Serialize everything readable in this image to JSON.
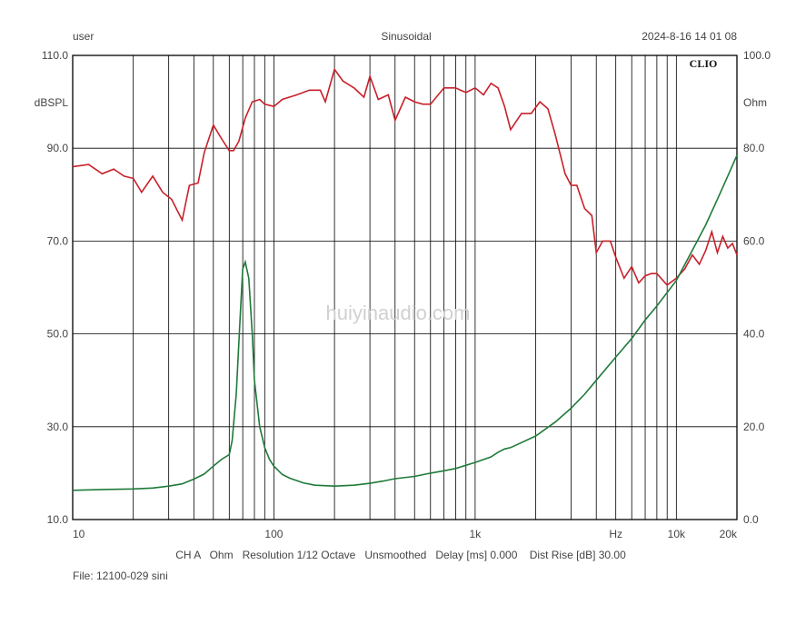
{
  "header": {
    "user": "user",
    "mode": "Sinusoidal",
    "datetime": "2024-8-16 14 01 08",
    "brand": "CLIO"
  },
  "watermark": "huiyinaudio.com",
  "footer": {
    "settings": "CH A   Ohm   Resolution 1/12 Octave   Unsmoothed   Delay [ms] 0.000    Dist Rise [dB] 30.00",
    "file": "File: 12100-029 sini"
  },
  "chart_data": {
    "type": "line",
    "x_scale": "log",
    "xlim": [
      10,
      20000
    ],
    "x_tick_labels": [
      {
        "value": 10,
        "label": "10"
      },
      {
        "value": 100,
        "label": "100"
      },
      {
        "value": 1000,
        "label": "1k"
      },
      {
        "value": 5000,
        "label": "Hz"
      },
      {
        "value": 10000,
        "label": "10k"
      },
      {
        "value": 20000,
        "label": "20k"
      }
    ],
    "left_axis": {
      "label": "dBSPL",
      "ylim": [
        10,
        110
      ],
      "ticks": [
        "10.0",
        "30.0",
        "50.0",
        "70.0",
        "90.0",
        "110.0"
      ]
    },
    "right_axis": {
      "label": "Ohm",
      "ylim": [
        0,
        100
      ],
      "ticks": [
        "0.0",
        "20.0",
        "40.0",
        "60.0",
        "80.0",
        "100.0"
      ]
    },
    "grid": true,
    "colors": {
      "spl": "#c8202a",
      "impedance": "#1f7a3a",
      "grid": "#000000"
    },
    "series": [
      {
        "key": "spl",
        "axis": "left",
        "x": [
          10,
          12,
          14,
          16,
          18,
          20,
          22,
          25,
          28,
          31,
          35,
          38,
          42,
          45,
          50,
          55,
          60,
          63,
          67,
          72,
          78,
          85,
          90,
          100,
          110,
          130,
          150,
          170,
          180,
          200,
          220,
          250,
          280,
          300,
          330,
          370,
          400,
          450,
          500,
          550,
          600,
          700,
          800,
          900,
          1000,
          1100,
          1200,
          1300,
          1400,
          1500,
          1700,
          1900,
          2100,
          2300,
          2500,
          2800,
          3000,
          3200,
          3500,
          3800,
          4000,
          4300,
          4700,
          5000,
          5500,
          6000,
          6500,
          7000,
          7500,
          8000,
          9000,
          10000,
          11000,
          12000,
          13000,
          14000,
          15000,
          16000,
          17000,
          18000,
          19000,
          20000
        ],
        "y": [
          86,
          86.5,
          84.5,
          85.5,
          84,
          83.5,
          80.5,
          84,
          80.5,
          79,
          74.5,
          82,
          82.5,
          89,
          95,
          92,
          89.5,
          89.5,
          91.5,
          96.5,
          100,
          100.5,
          99.5,
          99,
          100.5,
          101.5,
          102.5,
          102.5,
          100,
          107,
          104.5,
          103,
          101,
          105.5,
          100.5,
          101.5,
          96,
          101,
          100,
          99.5,
          99.5,
          103,
          103,
          102,
          103,
          101.5,
          104,
          103,
          99,
          94,
          97.5,
          97.5,
          100,
          98.5,
          93,
          84.5,
          82,
          82,
          77,
          75.5,
          67.5,
          70,
          70,
          66.5,
          62,
          64.5,
          61,
          62.5,
          63,
          63,
          60.5,
          62,
          64,
          67,
          65,
          68,
          72,
          67.5,
          71,
          68.5,
          69.5,
          67
        ]
      },
      {
        "key": "impedance",
        "axis": "right",
        "x": [
          10,
          15,
          20,
          25,
          30,
          35,
          40,
          45,
          50,
          55,
          60,
          62,
          65,
          68,
          70,
          72,
          75,
          78,
          80,
          85,
          90,
          95,
          100,
          110,
          120,
          140,
          160,
          200,
          250,
          300,
          350,
          400,
          500,
          600,
          700,
          800,
          1000,
          1200,
          1300,
          1400,
          1500,
          2000,
          2500,
          3000,
          3500,
          4000,
          5000,
          6000,
          7000,
          8000,
          10000,
          12000,
          14000,
          16000,
          18000,
          20000
        ],
        "y": [
          6.3,
          6.5,
          6.6,
          6.8,
          7.2,
          7.7,
          8.7,
          9.8,
          11.5,
          13,
          14,
          17,
          27,
          44,
          54,
          55.5,
          52,
          40,
          30,
          20,
          15.5,
          13,
          11.5,
          9.7,
          8.9,
          7.9,
          7.4,
          7.2,
          7.4,
          7.8,
          8.3,
          8.8,
          9.3,
          10,
          10.5,
          11,
          12.3,
          13.5,
          14.5,
          15.2,
          15.5,
          18,
          21,
          24,
          27,
          30,
          35,
          39,
          43,
          46,
          51.5,
          58,
          63.5,
          69,
          74,
          78.5
        ]
      }
    ]
  }
}
